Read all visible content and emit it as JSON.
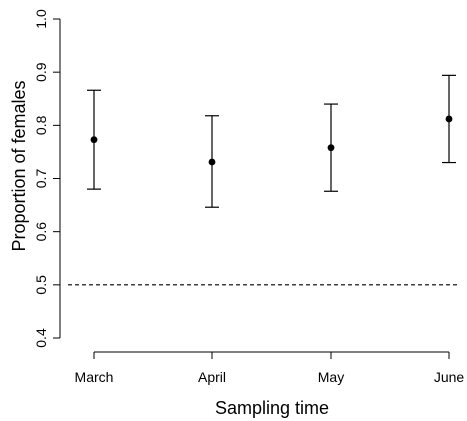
{
  "chart_data": {
    "type": "scatter",
    "title": "",
    "xlabel": "Sampling time",
    "ylabel": "Proportion of females",
    "categories": [
      "March",
      "April",
      "May",
      "June"
    ],
    "series": [
      {
        "values": [
          0.773,
          0.731,
          0.758,
          0.812
        ],
        "lower": [
          0.68,
          0.646,
          0.676,
          0.73
        ],
        "upper": [
          0.866,
          0.818,
          0.84,
          0.894
        ]
      }
    ],
    "ylim": [
      0.4,
      1.0
    ],
    "yticks": [
      0.4,
      0.5,
      0.6,
      0.7,
      0.8,
      0.9,
      1.0
    ],
    "ytick_labels": [
      "0.4",
      "0.5",
      "0.6",
      "0.7",
      "0.8",
      "0.9",
      "1.0"
    ],
    "reference_line": {
      "y": 0.5,
      "style": "dashed"
    },
    "grid": false,
    "legend": "none"
  }
}
